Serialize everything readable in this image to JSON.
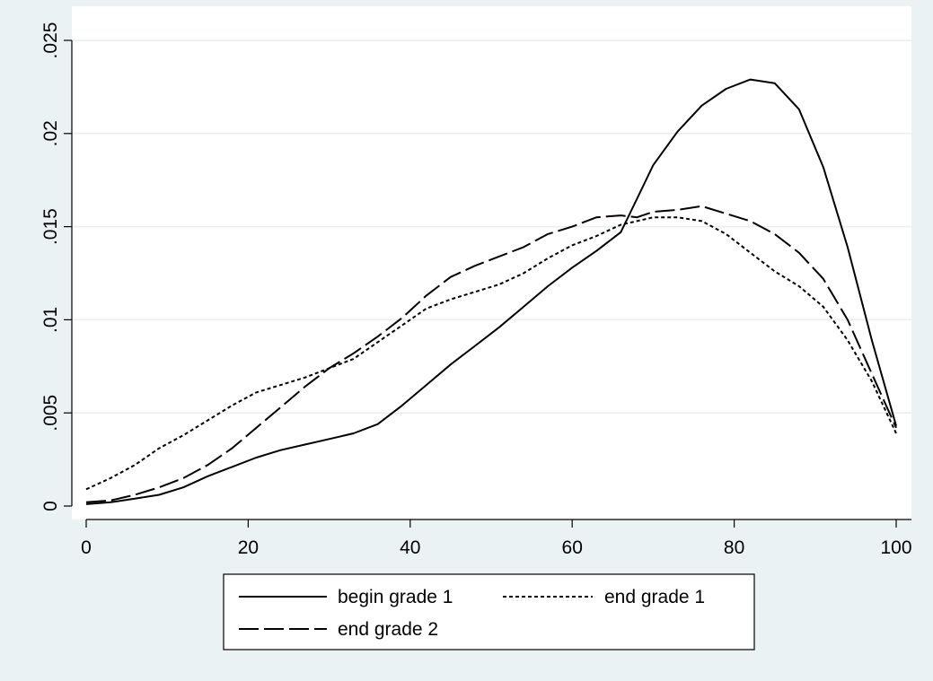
{
  "chart_data": {
    "type": "line",
    "title": "",
    "xlabel": "",
    "ylabel": "",
    "xlim": [
      0,
      100
    ],
    "ylim": [
      0,
      0.025
    ],
    "x_ticks": [
      0,
      20,
      40,
      60,
      80,
      100
    ],
    "x_tick_labels": [
      "0",
      "20",
      "40",
      "60",
      "80",
      "100"
    ],
    "y_ticks": [
      0,
      0.005,
      0.01,
      0.015,
      0.02,
      0.025
    ],
    "y_tick_labels": [
      "0",
      ".005",
      ".01",
      ".015",
      ".02",
      ".025"
    ],
    "grid": "horizontal",
    "legend_position": "bottom",
    "colors": {
      "background": "#eaf2f3",
      "plot_background": "#ffffff",
      "gridline": "#e6eef0",
      "line": "#000000"
    },
    "series": [
      {
        "name": "begin grade 1",
        "style": "solid",
        "x": [
          0,
          3,
          6,
          9,
          12,
          15,
          18,
          21,
          24,
          27,
          30,
          33,
          36,
          39,
          42,
          45,
          48,
          51,
          54,
          57,
          60,
          63,
          66,
          68,
          70,
          73,
          76,
          79,
          82,
          85,
          88,
          91,
          94,
          97,
          100
        ],
        "values": [
          0.0001,
          0.0002,
          0.0004,
          0.0006,
          0.001,
          0.0016,
          0.0021,
          0.0026,
          0.003,
          0.0033,
          0.0036,
          0.0039,
          0.0044,
          0.0054,
          0.0065,
          0.0076,
          0.0086,
          0.0096,
          0.0107,
          0.0118,
          0.0128,
          0.0137,
          0.0147,
          0.0165,
          0.0183,
          0.0201,
          0.0215,
          0.0224,
          0.0229,
          0.0227,
          0.0213,
          0.0182,
          0.0139,
          0.0089,
          0.0043
        ]
      },
      {
        "name": "end grade 1",
        "style": "dotted",
        "x": [
          0,
          3,
          6,
          9,
          12,
          15,
          18,
          21,
          24,
          27,
          30,
          33,
          36,
          39,
          42,
          45,
          48,
          51,
          54,
          57,
          60,
          63,
          66,
          68,
          70,
          73,
          76,
          79,
          82,
          85,
          88,
          91,
          94,
          97,
          100
        ],
        "values": [
          0.0009,
          0.0015,
          0.0022,
          0.0031,
          0.0038,
          0.0046,
          0.0054,
          0.0061,
          0.0065,
          0.0069,
          0.0074,
          0.0079,
          0.0088,
          0.0097,
          0.0106,
          0.0111,
          0.0115,
          0.0119,
          0.0125,
          0.0133,
          0.014,
          0.0145,
          0.0151,
          0.0153,
          0.0155,
          0.0155,
          0.0153,
          0.0146,
          0.0136,
          0.0126,
          0.0118,
          0.0107,
          0.0089,
          0.0067,
          0.0039
        ]
      },
      {
        "name": "end grade 2",
        "style": "dashed",
        "x": [
          0,
          3,
          6,
          9,
          12,
          15,
          18,
          21,
          24,
          27,
          30,
          33,
          36,
          39,
          42,
          45,
          48,
          51,
          54,
          57,
          60,
          63,
          66,
          68,
          70,
          73,
          76,
          79,
          82,
          85,
          88,
          91,
          94,
          97,
          100
        ],
        "values": [
          0.0002,
          0.0003,
          0.0006,
          0.001,
          0.0015,
          0.0022,
          0.0031,
          0.0042,
          0.0053,
          0.0064,
          0.0074,
          0.0082,
          0.0091,
          0.0101,
          0.0113,
          0.0123,
          0.0129,
          0.0134,
          0.0139,
          0.0146,
          0.015,
          0.0155,
          0.0156,
          0.0155,
          0.0158,
          0.0159,
          0.0161,
          0.0157,
          0.0153,
          0.0146,
          0.0136,
          0.0122,
          0.01,
          0.0071,
          0.0042
        ]
      }
    ]
  }
}
